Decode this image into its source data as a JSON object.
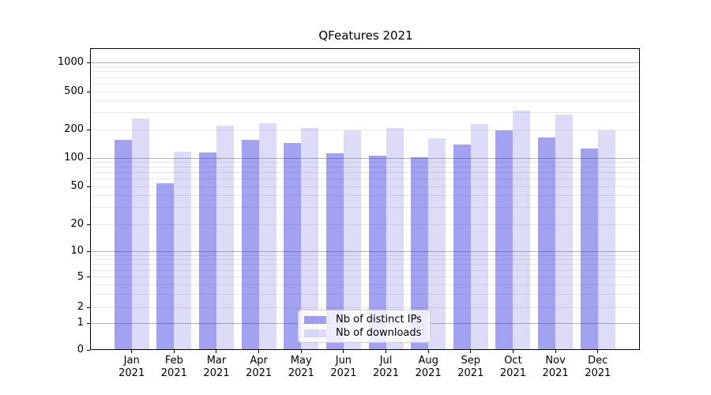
{
  "chart_data": {
    "type": "bar",
    "title": "QFeatures 2021",
    "year_label": "2021",
    "categories": [
      "Jan",
      "Feb",
      "Mar",
      "Apr",
      "May",
      "Jun",
      "Jul",
      "Aug",
      "Sep",
      "Oct",
      "Nov",
      "Dec"
    ],
    "series": [
      {
        "name": "Nb of distinct IPs",
        "color": "rgba(48,48,222,0.45)",
        "values": [
          156,
          54,
          115,
          155,
          145,
          113,
          105,
          102,
          139,
          196,
          165,
          126
        ]
      },
      {
        "name": "Nb of downloads",
        "color": "rgba(48,48,222,0.17)",
        "values": [
          263,
          116,
          222,
          236,
          211,
          196,
          209,
          163,
          232,
          315,
          287,
          198
        ]
      }
    ],
    "yscale": "symlog",
    "y_ticks": [
      0,
      1,
      2,
      5,
      10,
      20,
      50,
      100,
      200,
      500,
      1000
    ],
    "ylim": [
      0,
      1400
    ],
    "grid": true,
    "legend_position": "lower-center",
    "colors": {
      "major_grid": "#b0b0b0",
      "minor_grid": "#e8e8e8",
      "axis": "#000000",
      "text": "#000000",
      "legend_border": "#cccccc",
      "legend_background": "rgba(255,255,255,0.8)"
    }
  }
}
